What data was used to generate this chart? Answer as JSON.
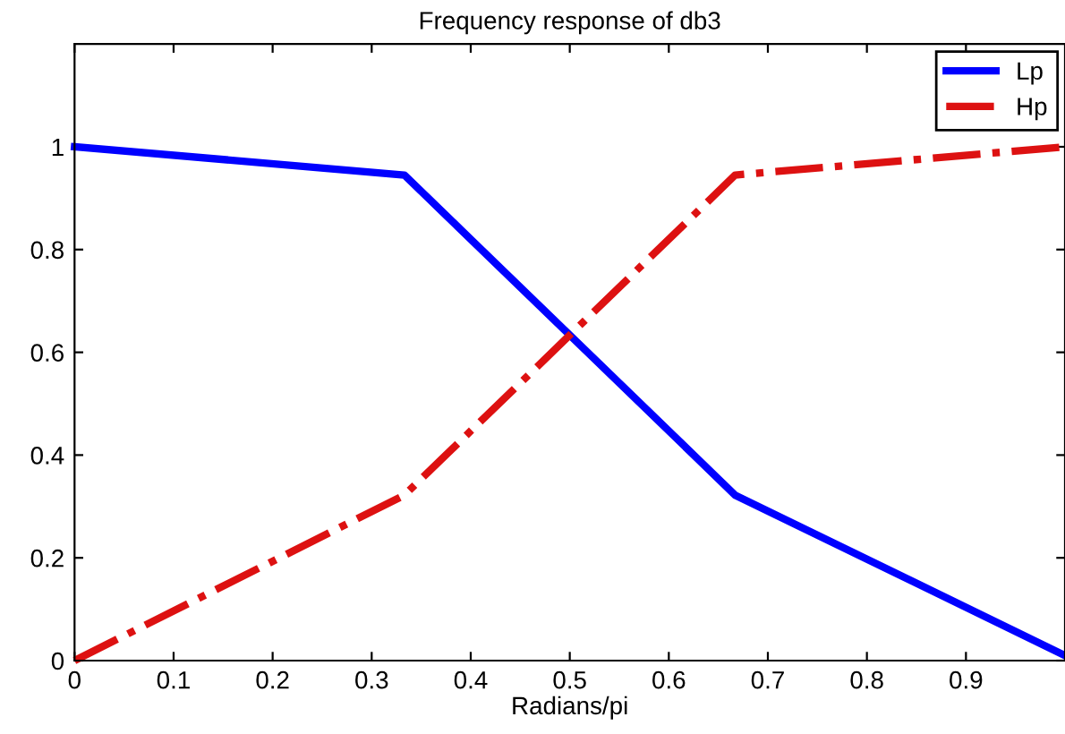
{
  "chart_data": {
    "type": "line",
    "title": "Frequency response of db3",
    "xlabel": "Radians/pi",
    "x": [
      0,
      0.333,
      0.667,
      1
    ],
    "series": [
      {
        "name": "Lp",
        "color": "#0000ff",
        "values": [
          1,
          0.945,
          0.322,
          0.01
        ],
        "line_style": "solid"
      },
      {
        "name": "Hp",
        "color": "#dd1111",
        "values": [
          0,
          0.322,
          0.945,
          1
        ],
        "line_style": "dashdot"
      }
    ],
    "xlim": [
      0,
      1
    ],
    "xticks": [
      0,
      0.1,
      0.2,
      0.3,
      0.4,
      0.5,
      0.6,
      0.7,
      0.8,
      0.9
    ],
    "ylim": [
      0,
      1.2
    ],
    "yticks": [
      0,
      0.2,
      0.4,
      0.6,
      0.8,
      1
    ],
    "grid": false,
    "legend": "top right",
    "marker": "none"
  }
}
